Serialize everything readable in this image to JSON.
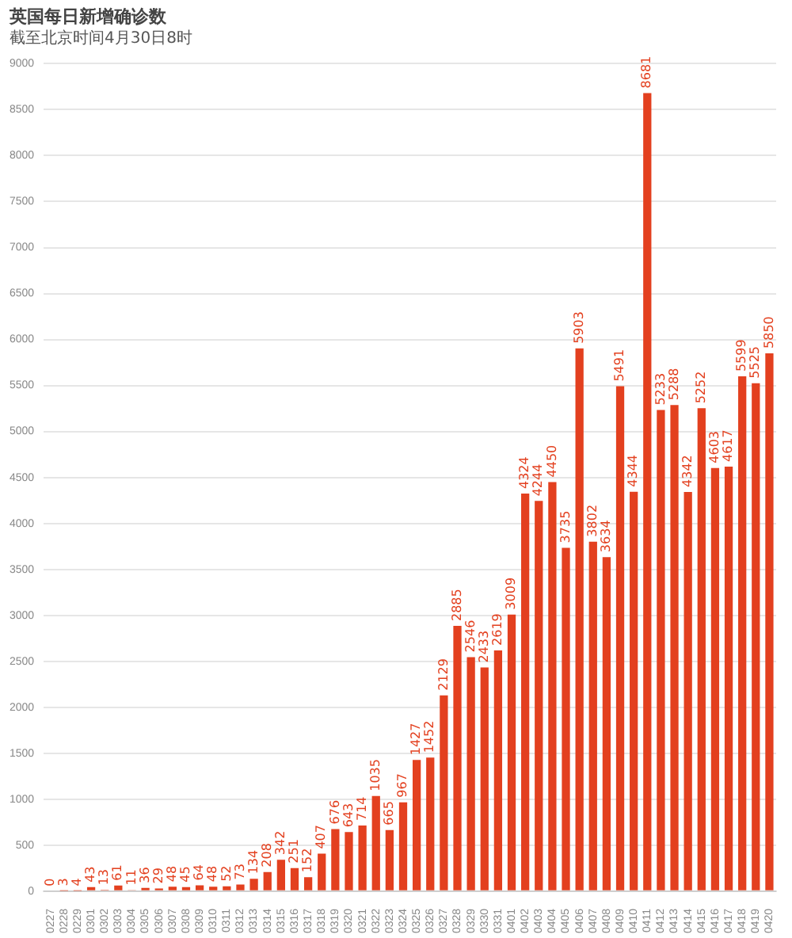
{
  "chart_data": {
    "type": "bar",
    "title": "英国每日新增确诊数",
    "subtitle": "截至北京时间4月30日8时",
    "categories": [
      "0227",
      "0228",
      "0229",
      "0301",
      "0302",
      "0303",
      "0304",
      "0305",
      "0306",
      "0307",
      "0308",
      "0309",
      "0310",
      "0311",
      "0312",
      "0313",
      "0314",
      "0315",
      "0316",
      "0317",
      "0318",
      "0319",
      "0320",
      "0321",
      "0322",
      "0323",
      "0324",
      "0325",
      "0326",
      "0327",
      "0328",
      "0329",
      "0330",
      "0331",
      "0401",
      "0402",
      "0403",
      "0404",
      "0405",
      "0406",
      "0407",
      "0408",
      "0409",
      "0410",
      "0411",
      "0412",
      "0413",
      "0414",
      "0415",
      "0416",
      "0417",
      "0418",
      "0419",
      "0420"
    ],
    "values": [
      0,
      3,
      4,
      43,
      13,
      61,
      11,
      36,
      29,
      48,
      45,
      64,
      48,
      52,
      73,
      134,
      208,
      342,
      251,
      152,
      407,
      676,
      643,
      714,
      1035,
      665,
      967,
      1427,
      1452,
      2129,
      2885,
      2546,
      2433,
      2619,
      3009,
      4324,
      4244,
      4450,
      3735,
      5903,
      3802,
      3634,
      5491,
      4344,
      8681,
      5233,
      5288,
      4342,
      5252,
      4603,
      4617,
      5599,
      5525,
      5850
    ],
    "color": "#e3401f",
    "ylim": [
      0,
      9000
    ],
    "yticks": [
      0,
      500,
      1000,
      1500,
      2000,
      2500,
      3000,
      3500,
      4000,
      4500,
      5000,
      5500,
      6000,
      6500,
      7000,
      7500,
      8000,
      8500,
      9000
    ],
    "grid": "y",
    "data_labels": true,
    "legend": false
  }
}
